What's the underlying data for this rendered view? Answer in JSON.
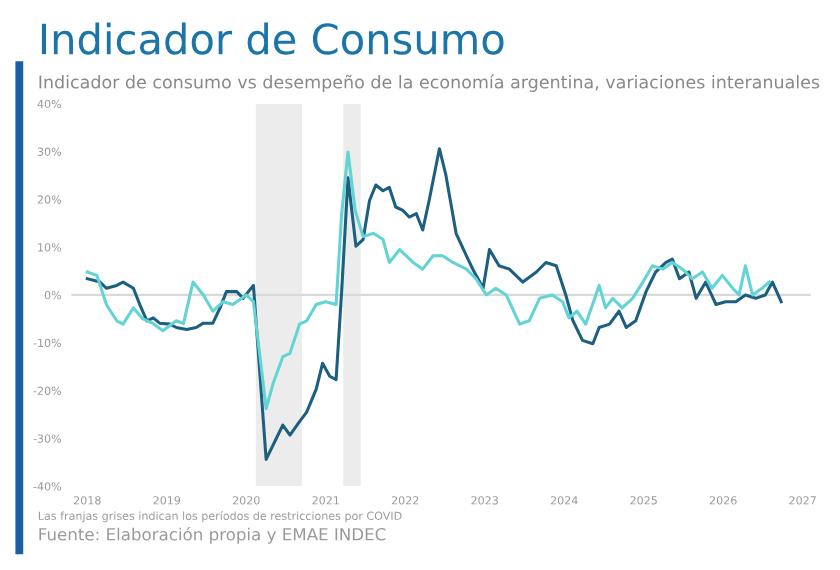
{
  "chart_data": {
    "type": "line",
    "title": "Indicador de Consumo",
    "subtitle": "Indicador de consumo vs desempeño de la economía argentina, variaciones interanuales",
    "annotations": [
      "Las franjas grises indican los períodos de restricciones por COVID",
      "Fuente: Elaboración propia y EMAE INDEC"
    ],
    "series": [
      {
        "color": "#1d5f80",
        "x": [
          2018.0,
          2018.16,
          2018.24,
          2018.37,
          2018.45,
          2018.58,
          2018.66,
          2018.75,
          2018.83,
          2018.91,
          2019.04,
          2019.12,
          2019.25,
          2019.37,
          2019.46,
          2019.58,
          2019.67,
          2019.75,
          2019.88,
          2019.96,
          2020.09,
          2020.25,
          2020.34,
          2020.46,
          2020.55,
          2020.67,
          2020.76,
          2020.88,
          2020.96,
          2021.05,
          2021.13,
          2021.2,
          2021.28,
          2021.38,
          2021.47,
          2021.55,
          2021.63,
          2021.72,
          2021.8,
          2021.88,
          2021.97,
          2022.05,
          2022.14,
          2022.22,
          2022.3,
          2022.43,
          2022.51,
          2022.64,
          2022.77,
          2022.85,
          2022.98,
          2023.06,
          2023.18,
          2023.31,
          2023.48,
          2023.65,
          2023.77,
          2023.9,
          2024.02,
          2024.11,
          2024.23,
          2024.36,
          2024.44,
          2024.57,
          2024.69,
          2024.78,
          2024.9,
          2025.03,
          2025.15,
          2025.28,
          2025.36,
          2025.45,
          2025.57,
          2025.66,
          2025.78,
          2025.91,
          2026.03,
          2026.16,
          2026.28,
          2026.41,
          2026.53,
          2026.62,
          2026.73
        ],
        "values": [
          3.4,
          2.7,
          1.4,
          2,
          2.7,
          1.4,
          -2,
          -5.4,
          -4.8,
          -5.9,
          -6.1,
          -6.8,
          -7.2,
          -6.8,
          -5.9,
          -5.9,
          -2.7,
          0.7,
          0.7,
          -0.7,
          2,
          -34.4,
          -31.3,
          -27.2,
          -29.3,
          -26.5,
          -24.5,
          -19.7,
          -14.3,
          -17,
          -17.7,
          0.7,
          24.5,
          10.2,
          11.6,
          19.7,
          23,
          21.8,
          22.5,
          18.4,
          17.7,
          16.3,
          17,
          13.6,
          19.7,
          30.6,
          25.2,
          12.9,
          8.2,
          5.4,
          1.4,
          9.5,
          6.1,
          5.4,
          2.7,
          4.8,
          6.8,
          6.1,
          0,
          -5.4,
          -9.5,
          -10.2,
          -6.8,
          -6.1,
          -3.4,
          -6.8,
          -5.4,
          0.7,
          4.8,
          6.8,
          7.5,
          3.4,
          4.8,
          -0.7,
          2.7,
          -2,
          -1.4,
          -1.4,
          0,
          -0.7,
          0,
          2.7,
          -1.4
        ]
      },
      {
        "color": "#62d4d4",
        "x": [
          2018.0,
          2018.12,
          2018.24,
          2018.37,
          2018.45,
          2018.58,
          2018.7,
          2018.83,
          2018.95,
          2019.12,
          2019.21,
          2019.33,
          2019.46,
          2019.58,
          2019.71,
          2019.83,
          2020.0,
          2020.09,
          2020.25,
          2020.34,
          2020.46,
          2020.55,
          2020.67,
          2020.76,
          2020.88,
          2021.0,
          2021.13,
          2021.2,
          2021.28,
          2021.37,
          2021.47,
          2021.6,
          2021.72,
          2021.8,
          2021.93,
          2022.1,
          2022.22,
          2022.35,
          2022.47,
          2022.6,
          2022.77,
          2022.89,
          2023.02,
          2023.14,
          2023.27,
          2023.44,
          2023.56,
          2023.69,
          2023.85,
          2023.98,
          2024.06,
          2024.16,
          2024.27,
          2024.44,
          2024.52,
          2024.61,
          2024.73,
          2024.86,
          2024.99,
          2025.11,
          2025.24,
          2025.36,
          2025.49,
          2025.61,
          2025.74,
          2025.86,
          2025.99,
          2026.12,
          2026.2,
          2026.28,
          2026.37,
          2026.49,
          2026.58
        ],
        "values": [
          4.8,
          4.1,
          -2,
          -5.4,
          -6.1,
          -2.7,
          -5,
          -6,
          -7.5,
          -5.4,
          -6,
          2.7,
          0,
          -3.4,
          -1.4,
          -2,
          0,
          -1.4,
          -23.8,
          -18.4,
          -12.9,
          -12.2,
          -6.1,
          -5.4,
          -2,
          -1.4,
          -2,
          17,
          29.9,
          17.7,
          12.2,
          12.9,
          11.6,
          6.8,
          9.5,
          6.8,
          5.4,
          8.2,
          8.2,
          6.8,
          5.4,
          3.4,
          0,
          1.4,
          0,
          -6.1,
          -5.4,
          -0.7,
          0,
          -1.4,
          -4.8,
          -3.4,
          -6.1,
          2,
          -2.7,
          -0.7,
          -2.7,
          -0.7,
          2.7,
          6.1,
          5.4,
          6.8,
          5.4,
          3.4,
          4.8,
          1.4,
          4.1,
          1.4,
          0,
          6.1,
          0,
          1.4,
          2.7
        ]
      }
    ],
    "xlim": [
      2017.8,
      2027.1
    ],
    "xticks": [
      2018,
      2019,
      2020,
      2021,
      2022,
      2023,
      2024,
      2025,
      2026,
      2027
    ],
    "ylim": [
      -40,
      40
    ],
    "yticks": [
      {
        "value": -40,
        "label": "-40%"
      },
      {
        "value": -30,
        "label": "-30%"
      },
      {
        "value": -20,
        "label": "-20%"
      },
      {
        "value": -10,
        "label": "-10%"
      },
      {
        "value": 0,
        "label": "0%"
      },
      {
        "value": 10,
        "label": "10%"
      },
      {
        "value": 20,
        "label": "20%"
      },
      {
        "value": 30,
        "label": "30%"
      },
      {
        "value": 40,
        "label": "40%"
      }
    ],
    "ref_lines": [
      {
        "axis": "y",
        "value": 0,
        "color": "#d9d9d9"
      }
    ],
    "bands": [
      {
        "axis": "x",
        "from": 2020.12,
        "to": 2020.7,
        "color": "#ececec"
      },
      {
        "axis": "x",
        "from": 2021.22,
        "to": 2021.44,
        "color": "#ececec"
      }
    ],
    "grid": false,
    "legend": false,
    "marker": "none",
    "line_style": "solid"
  }
}
